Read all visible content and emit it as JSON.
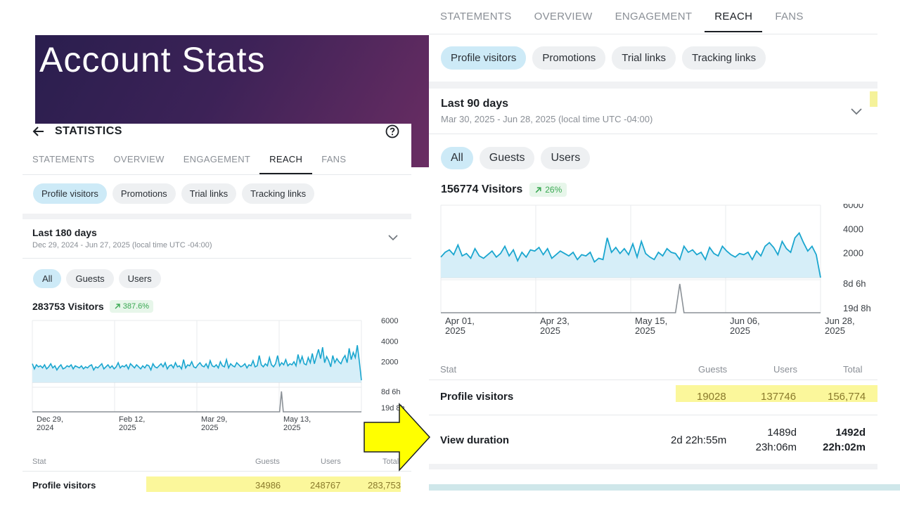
{
  "slide": {
    "title": "Account Stats"
  },
  "left": {
    "header_title": "STATISTICS",
    "tabs": [
      "STATEMENTS",
      "OVERVIEW",
      "ENGAGEMENT",
      "REACH",
      "FANS"
    ],
    "active_tab": "REACH",
    "chips": [
      "Profile visitors",
      "Promotions",
      "Trial links",
      "Tracking links"
    ],
    "period_title": "Last 180 days",
    "period_sub": "Dec 29, 2024 - Jun 27, 2025 (local time UTC -04:00)",
    "filters": [
      "All",
      "Guests",
      "Users"
    ],
    "visitors_label": "283753 Visitors",
    "trend": "387.6%",
    "stat_headers": {
      "stat": "Stat",
      "guests": "Guests",
      "users": "Users",
      "total": "Total"
    },
    "rows": [
      {
        "label": "Profile visitors",
        "guests": "34986",
        "users": "248767",
        "total": "283,753"
      }
    ]
  },
  "right": {
    "tabs": [
      "STATEMENTS",
      "OVERVIEW",
      "ENGAGEMENT",
      "REACH",
      "FANS"
    ],
    "active_tab": "REACH",
    "chips": [
      "Profile visitors",
      "Promotions",
      "Trial links",
      "Tracking links"
    ],
    "period_title": "Last 90 days",
    "period_sub": "Mar 30, 2025 - Jun 28, 2025 (local time UTC -04:00)",
    "filters": [
      "All",
      "Guests",
      "Users"
    ],
    "visitors_label": "156774 Visitors",
    "trend": "26%",
    "stat_headers": {
      "stat": "Stat",
      "guests": "Guests",
      "users": "Users",
      "total": "Total"
    },
    "rows": [
      {
        "label": "Profile visitors",
        "guests": "19028",
        "users": "137746",
        "total": "156,774"
      },
      {
        "label": "View duration",
        "guests": "2d 22h:55m",
        "users_line1": "1489d",
        "users_line2": "23h:06m",
        "total_line1": "1492d",
        "total_line2": "22h:02m"
      }
    ]
  },
  "colors": {
    "accent_line": "#1aa6cf",
    "area_fill": "#d6eef8",
    "highlight": "#fbf79b",
    "arrow": "#ffff00",
    "slide_bg_start": "#2a1e4e",
    "slide_bg_end": "#6a2d63"
  },
  "chart_data": [
    {
      "type": "area",
      "name_hint": "left-visitors",
      "ylim": [
        0,
        6000
      ],
      "y_ticks": [
        "2000",
        "4000",
        "6000"
      ],
      "x_ticks": [
        {
          "line1": "Dec 29,",
          "line2": "2024"
        },
        {
          "line1": "Feb 12,",
          "line2": "2025"
        },
        {
          "line1": "Mar 29,",
          "line2": "2025"
        },
        {
          "line1": "May 13,",
          "line2": "2025"
        }
      ],
      "lower_ticks": [
        "8d 6h",
        "19d 8h"
      ],
      "values": [
        1800,
        1300,
        1700,
        1500,
        1600,
        1400,
        1700,
        1300,
        1500,
        1800,
        1400,
        1600,
        1200,
        1500,
        1700,
        1300,
        1400,
        1600,
        1500,
        1700,
        1300,
        1600,
        1500,
        1400,
        1600,
        1300,
        1500,
        1400,
        1600,
        1700,
        1200,
        1500,
        1400,
        1600,
        1800,
        1300,
        1500,
        1700,
        1400,
        1600,
        1300,
        1500,
        1900,
        1400,
        1600,
        1500,
        1700,
        1300,
        1800,
        1600,
        1400,
        1700,
        1500,
        1300,
        1600,
        1400,
        1700,
        1600,
        1200,
        1800,
        1500,
        1400,
        1600,
        1800,
        1500,
        1900,
        1300,
        1600,
        1700,
        1400,
        1900,
        1500,
        1600,
        1300,
        2200,
        1400,
        1700,
        1600,
        2000,
        1500,
        1400,
        1700,
        1900,
        1600,
        1500,
        1800,
        1400,
        2100,
        1600,
        1500,
        1700,
        1400,
        2000,
        1600,
        1500,
        2200,
        1400,
        1800,
        1600,
        1500,
        1900,
        1700,
        1500,
        1600,
        1800,
        1400,
        1700,
        1600,
        2100,
        1500,
        1600,
        2600,
        1700,
        1500,
        1800,
        1600,
        2400,
        1700,
        1500,
        1800,
        2600,
        1600,
        1900,
        1700,
        2200,
        1600,
        1800,
        1700,
        2000,
        1600,
        2700,
        1900,
        2500,
        1800,
        1700,
        2400,
        1900,
        2800,
        1800,
        2500,
        3200,
        2300,
        3400,
        1900,
        2500,
        2100,
        1500,
        2600,
        1900,
        2300,
        2000,
        1800,
        2300,
        2600,
        1900,
        3300,
        2200,
        2900,
        2400,
        3600,
        2000,
        200
      ],
      "duration_series": [
        0,
        0,
        0,
        0,
        0,
        0,
        0,
        0,
        0,
        0,
        0,
        0,
        0,
        0,
        0,
        0,
        0,
        0,
        0,
        0,
        0,
        0,
        0,
        0,
        0,
        0,
        0,
        0,
        0,
        0,
        0,
        0,
        0,
        0,
        0,
        0,
        0,
        0,
        0,
        0,
        0,
        0,
        0,
        0,
        0,
        0,
        0,
        0,
        0,
        0,
        0,
        0,
        0,
        0,
        0,
        0,
        0,
        0,
        0,
        0,
        0,
        0,
        0,
        0,
        0,
        0,
        0,
        0,
        0,
        0,
        0,
        0,
        0,
        0,
        0,
        0,
        0,
        0,
        0,
        0,
        0,
        0,
        0,
        0,
        0,
        0,
        0,
        0,
        0,
        0,
        0,
        0,
        0,
        0,
        0,
        0,
        0,
        0,
        0,
        0,
        0,
        0,
        0,
        0,
        0,
        0,
        0,
        0,
        0,
        0,
        0,
        0,
        0,
        0,
        0,
        0,
        0,
        0,
        0,
        0,
        0,
        0,
        0,
        0,
        0,
        0,
        0,
        0,
        0,
        0,
        0,
        0,
        0,
        0,
        1,
        0,
        0,
        0,
        0,
        0,
        0,
        0,
        0,
        0,
        0,
        0,
        0,
        0,
        0,
        0,
        0,
        0,
        0,
        0,
        0,
        0,
        0,
        0,
        0,
        0,
        0,
        0,
        0,
        0,
        0,
        0,
        0,
        0,
        0,
        0,
        0,
        0,
        0,
        0,
        0,
        0,
        0,
        0
      ]
    },
    {
      "type": "area",
      "name_hint": "right-visitors",
      "ylim": [
        0,
        6000
      ],
      "y_ticks": [
        "2000",
        "4000",
        "6000"
      ],
      "x_ticks": [
        {
          "line1": "Apr 01,",
          "line2": "2025"
        },
        {
          "line1": "Apr 23,",
          "line2": "2025"
        },
        {
          "line1": "May 15,",
          "line2": "2025"
        },
        {
          "line1": "Jun 06,",
          "line2": "2025"
        },
        {
          "line1": "Jun 28,",
          "line2": "2025"
        }
      ],
      "lower_ticks": [
        "8d 6h",
        "19d 8h"
      ],
      "values": [
        1700,
        2100,
        2300,
        1900,
        2700,
        1800,
        2000,
        1600,
        2400,
        1800,
        1600,
        1900,
        2200,
        1700,
        2000,
        2600,
        1800,
        2300,
        1400,
        2100,
        1700,
        2300,
        2200,
        2500,
        1900,
        2400,
        1600,
        1900,
        2200,
        2000,
        1800,
        2100,
        1500,
        1900,
        1800,
        2100,
        1300,
        1600,
        1500,
        3300,
        2100,
        2500,
        2000,
        2400,
        1900,
        2800,
        1700,
        3000,
        2000,
        1700,
        1500,
        2100,
        1800,
        2400,
        2100,
        2000,
        1500,
        2600,
        2100,
        2300,
        1900,
        2100,
        1500,
        2500,
        2000,
        1800,
        2600,
        2200,
        1900,
        1700,
        2000,
        1900,
        2100,
        1500,
        2200,
        1800,
        2600,
        2900,
        2500,
        1900,
        3000,
        2400,
        2100,
        3300,
        3700,
        2900,
        2200,
        2600,
        1900,
        0
      ],
      "duration_series": [
        0,
        0,
        0,
        0,
        0,
        0,
        0,
        0,
        0,
        0,
        0,
        0,
        0,
        0,
        0,
        0,
        0,
        0,
        0,
        0,
        0,
        0,
        0,
        0,
        0,
        0,
        0,
        0,
        0,
        0,
        0,
        0,
        0,
        0,
        0,
        0,
        0,
        0,
        0,
        0,
        0,
        0,
        0,
        0,
        0,
        0,
        0,
        0,
        0,
        0,
        0,
        0,
        0,
        0,
        0,
        0,
        1,
        0,
        0,
        0,
        0,
        0,
        0,
        0,
        0,
        0,
        0,
        0,
        0,
        0,
        0,
        0,
        0,
        0,
        0,
        0,
        0,
        0,
        0,
        0,
        0,
        0,
        0,
        0,
        0,
        0,
        0,
        0,
        0,
        0
      ]
    }
  ]
}
